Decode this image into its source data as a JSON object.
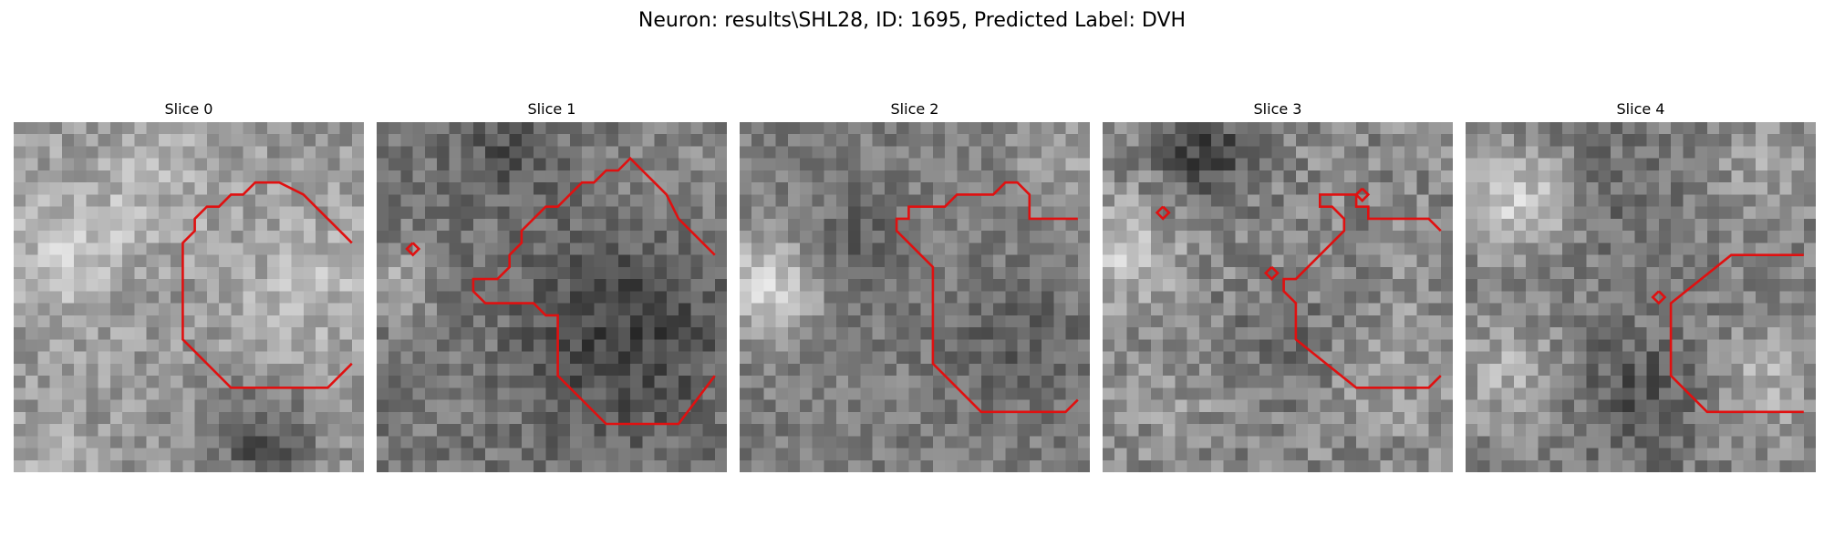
{
  "figure": {
    "title": "Neuron: results\\SHL28, ID: 1695, Predicted Label: DVH"
  },
  "panels": [
    {
      "title": "Slice 0"
    },
    {
      "title": "Slice 1"
    },
    {
      "title": "Slice 2"
    },
    {
      "title": "Slice 3"
    },
    {
      "title": "Slice 4"
    }
  ],
  "colors": {
    "contour": "#e01010",
    "colormap": "gray"
  }
}
